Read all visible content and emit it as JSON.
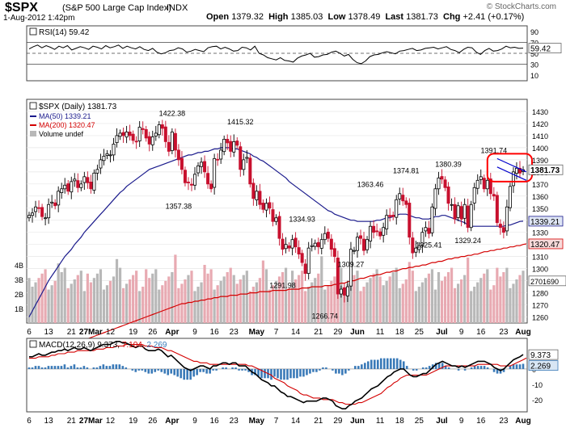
{
  "header": {
    "symbol": "$SPX",
    "name": "(S&P 500 Large Cap Index)",
    "exchange": "INDX",
    "datetime": "1-Aug-2012 1:42pm",
    "open_label": "Open",
    "open": "1379.32",
    "high_label": "High",
    "high": "1385.03",
    "low_label": "Low",
    "low": "1378.49",
    "last_label": "Last",
    "last": "1381.73",
    "chg_label": "Chg",
    "chg": "+2.41 (+0.17%)",
    "credit": "© StockCharts.com"
  },
  "colors": {
    "up_candle": "#000000",
    "down_candle": "#c8102e",
    "ma50": "#1a1a8c",
    "ma200": "#d40000",
    "volume_up": "#b8b8b8",
    "volume_down": "#e8aab2",
    "rsi_fill": "#8a3a3a",
    "macd_line": "#000000",
    "signal_line": "#d40000",
    "histogram": "#3a7ab8",
    "annotation": "#ff0000",
    "trendline": "#0000cc"
  },
  "chart_data": [
    {
      "panel": "rsi",
      "type": "line",
      "legend": "RSI(14) 59.42",
      "last_label": "59.42",
      "ylim": [
        0,
        100
      ],
      "y_ticks": [
        "90",
        "70",
        "50",
        "30",
        "10"
      ],
      "reference_levels": [
        70,
        50,
        30
      ],
      "values": [
        58,
        62,
        65,
        60,
        64,
        61,
        57,
        63,
        60,
        64,
        56,
        59,
        62,
        60,
        57,
        63,
        61,
        58,
        64,
        60,
        62,
        65,
        59,
        63,
        60,
        58,
        62,
        57,
        55,
        59,
        52,
        49,
        51,
        55,
        56,
        60,
        58,
        52,
        54,
        57,
        55,
        53,
        60,
        62,
        63,
        58,
        61,
        58,
        54,
        55,
        61,
        60,
        56,
        63,
        50,
        47,
        42,
        40,
        38,
        42,
        37,
        36,
        34,
        41,
        45,
        47,
        50,
        43,
        44,
        47,
        48,
        52,
        54,
        50,
        45,
        48,
        39,
        33,
        31,
        36,
        44,
        47,
        48,
        51,
        53,
        51,
        49,
        54,
        55,
        57,
        59,
        55,
        56,
        59,
        60,
        61,
        58,
        60,
        62,
        57,
        55,
        51,
        57,
        61,
        60,
        52,
        48,
        55,
        59,
        54,
        55,
        58,
        63,
        60,
        61,
        59,
        59.42
      ]
    },
    {
      "panel": "price",
      "type": "candlestick",
      "legend": [
        "$SPX (Daily) 1381.73",
        "MA(50) 1339.21",
        "MA(200) 1320.47",
        "Volume undef"
      ],
      "ylim": [
        1255,
        1440
      ],
      "y_ticks": [
        1260,
        1270,
        1280,
        1290,
        1300,
        1310,
        1320,
        1330,
        1340,
        1350,
        1360,
        1370,
        1380,
        1390,
        1400,
        1410,
        1420,
        1430
      ],
      "x_tick_labels": [
        "6",
        "13",
        "21",
        "27Mar",
        "12",
        "19",
        "26",
        "Apr",
        "9",
        "16",
        "23",
        "May",
        "7",
        "14",
        "21",
        "29",
        "Jun",
        "11",
        "18",
        "25",
        "Jul",
        "9",
        "16",
        "23",
        "Aug"
      ],
      "annotations": [
        "1422.38",
        "1415.32",
        "1357.38",
        "1334.93",
        "1291.98",
        "1266.74",
        "1363.46",
        "1309.27",
        "1374.81",
        "1380.39",
        "1325.41",
        "1329.24",
        "1391.74"
      ],
      "last_price_labels": [
        "1381.73",
        "1339.21",
        "1320.47"
      ],
      "closes": [
        1344,
        1346,
        1351,
        1350,
        1343,
        1342,
        1353,
        1355,
        1352,
        1364,
        1366,
        1369,
        1364,
        1372,
        1374,
        1367,
        1370,
        1376,
        1371,
        1366,
        1379,
        1382,
        1390,
        1393,
        1395,
        1394,
        1403,
        1410,
        1412,
        1410,
        1413,
        1410,
        1406,
        1405,
        1417,
        1415,
        1408,
        1403,
        1409,
        1412,
        1419,
        1416,
        1405,
        1397,
        1413,
        1398,
        1390,
        1382,
        1371,
        1371,
        1369,
        1378,
        1385,
        1388,
        1380,
        1370,
        1366,
        1391,
        1390,
        1398,
        1407,
        1404,
        1397,
        1405,
        1402,
        1382,
        1390,
        1392,
        1370,
        1358,
        1364,
        1353,
        1349,
        1354,
        1350,
        1339,
        1342,
        1325,
        1316,
        1320,
        1317,
        1324,
        1318,
        1312,
        1305,
        1296,
        1317,
        1319,
        1321,
        1318,
        1324,
        1329,
        1325,
        1316,
        1310,
        1279,
        1283,
        1278,
        1285,
        1316,
        1315,
        1326,
        1325,
        1315,
        1324,
        1335,
        1330,
        1331,
        1327,
        1334,
        1344,
        1343,
        1343,
        1357,
        1362,
        1356,
        1353,
        1326,
        1313,
        1317,
        1319,
        1330,
        1334,
        1329,
        1351,
        1366,
        1375,
        1374,
        1367,
        1354,
        1353,
        1341,
        1352,
        1341,
        1353,
        1334,
        1353,
        1367,
        1373,
        1376,
        1366,
        1373,
        1362,
        1360,
        1338,
        1334,
        1330,
        1351,
        1368,
        1380,
        1383,
        1379,
        1381.73
      ],
      "ma50": [
        1260,
        1265,
        1270,
        1275,
        1280,
        1285,
        1290,
        1294,
        1298,
        1302,
        1306,
        1310,
        1313,
        1316,
        1320,
        1323,
        1326,
        1330,
        1333,
        1336,
        1339,
        1342,
        1345,
        1348,
        1351,
        1354,
        1357,
        1360,
        1363,
        1365,
        1368,
        1370,
        1372,
        1374,
        1376,
        1378,
        1380,
        1382,
        1383,
        1384,
        1385,
        1386,
        1387,
        1388,
        1389,
        1390,
        1391,
        1392,
        1393,
        1394,
        1394,
        1395,
        1396,
        1396,
        1397,
        1397,
        1398,
        1399,
        1399,
        1400,
        1400,
        1400,
        1400,
        1399,
        1399,
        1398,
        1397,
        1396,
        1395,
        1393,
        1392,
        1390,
        1389,
        1387,
        1385,
        1383,
        1381,
        1379,
        1377,
        1375,
        1372,
        1370,
        1368,
        1366,
        1364,
        1362,
        1360,
        1358,
        1356,
        1354,
        1352,
        1350,
        1348,
        1347,
        1345,
        1344,
        1343,
        1342,
        1341,
        1340,
        1340,
        1339,
        1339,
        1339,
        1339,
        1339,
        1339,
        1340,
        1340,
        1341,
        1342,
        1342,
        1343,
        1344,
        1345,
        1345,
        1345,
        1344,
        1343,
        1342,
        1342,
        1341,
        1341,
        1341,
        1342,
        1343,
        1343,
        1344,
        1344,
        1343,
        1342,
        1341,
        1340,
        1339,
        1338,
        1336,
        1335,
        1335,
        1335,
        1335,
        1335,
        1335,
        1335,
        1335,
        1335,
        1335,
        1335,
        1336,
        1336,
        1337,
        1338,
        1339,
        1339.21
      ],
      "ma200": [
        1225,
        1226,
        1227,
        1228,
        1229,
        1230,
        1230,
        1231,
        1232,
        1233,
        1234,
        1235,
        1236,
        1237,
        1238,
        1239,
        1240,
        1241,
        1242,
        1243,
        1244,
        1245,
        1246,
        1247,
        1248,
        1249,
        1250,
        1251,
        1252,
        1253,
        1254,
        1255,
        1256,
        1257,
        1258,
        1259,
        1260,
        1261,
        1262,
        1263,
        1264,
        1265,
        1266,
        1267,
        1268,
        1269,
        1270,
        1271,
        1271,
        1272,
        1272,
        1273,
        1273,
        1274,
        1274,
        1275,
        1275,
        1276,
        1276,
        1277,
        1277,
        1277,
        1278,
        1278,
        1278,
        1279,
        1279,
        1279,
        1280,
        1280,
        1280,
        1281,
        1281,
        1281,
        1281,
        1282,
        1282,
        1282,
        1282,
        1282,
        1283,
        1283,
        1283,
        1283,
        1284,
        1284,
        1284,
        1285,
        1285,
        1285,
        1285,
        1286,
        1286,
        1286,
        1287,
        1287,
        1288,
        1288,
        1289,
        1290,
        1290,
        1291,
        1292,
        1292,
        1293,
        1294,
        1294,
        1295,
        1295,
        1296,
        1297,
        1297,
        1298,
        1298,
        1299,
        1300,
        1300,
        1301,
        1301,
        1302,
        1302,
        1303,
        1303,
        1304,
        1305,
        1305,
        1306,
        1306,
        1307,
        1308,
        1308,
        1309,
        1309,
        1310,
        1310,
        1311,
        1311,
        1312,
        1312,
        1313,
        1314,
        1314,
        1315,
        1315,
        1316,
        1316,
        1317,
        1317,
        1318,
        1318,
        1319,
        1319,
        1320,
        1320.47
      ],
      "volume_axis_labels": [
        "4B",
        "3B",
        "2B",
        "1B"
      ],
      "volume_note": "2701690"
    },
    {
      "panel": "macd",
      "type": "line+histogram",
      "legend_prefix": "MACD(12,26,9)",
      "macd_value": "9.373",
      "signal_value": "7.104",
      "hist_value": "2.269",
      "ylim": [
        -28,
        20
      ],
      "y_ticks": [
        "10",
        "0",
        "-10",
        "-20"
      ],
      "last_labels": [
        "9.373",
        "2.269"
      ],
      "macd": [
        8,
        8,
        9,
        10,
        9,
        9,
        10,
        11,
        11,
        12,
        12,
        13,
        12,
        13,
        14,
        13,
        13,
        14,
        13,
        12,
        13,
        14,
        15,
        16,
        16,
        16,
        17,
        18,
        18,
        17,
        17,
        16,
        15,
        14,
        15,
        15,
        13,
        12,
        12,
        12,
        13,
        12,
        10,
        8,
        9,
        7,
        5,
        3,
        1,
        0,
        -1,
        0,
        1,
        2,
        2,
        1,
        0,
        2,
        2,
        3,
        4,
        4,
        3,
        4,
        4,
        2,
        2,
        2,
        0,
        -2,
        -3,
        -5,
        -7,
        -8,
        -9,
        -11,
        -11,
        -13,
        -15,
        -16,
        -18,
        -18,
        -19,
        -20,
        -21,
        -22,
        -21,
        -21,
        -21,
        -21,
        -20,
        -19,
        -19,
        -20,
        -21,
        -24,
        -25,
        -26,
        -26,
        -24,
        -23,
        -21,
        -20,
        -19,
        -17,
        -15,
        -13,
        -12,
        -11,
        -9,
        -7,
        -5,
        -4,
        -2,
        -1,
        0,
        0,
        -2,
        -4,
        -5,
        -5,
        -4,
        -3,
        -3,
        -1,
        1,
        3,
        4,
        5,
        4,
        3,
        2,
        2,
        1,
        2,
        1,
        2,
        3,
        4,
        5,
        5,
        5,
        4,
        3,
        1,
        0,
        -1,
        0,
        2,
        4,
        6,
        7,
        8,
        9.373
      ],
      "signal": [
        7,
        7,
        7,
        8,
        8,
        8,
        8,
        9,
        9,
        10,
        10,
        10,
        11,
        11,
        11,
        12,
        12,
        12,
        12,
        12,
        12,
        13,
        13,
        13,
        14,
        14,
        14,
        15,
        15,
        15,
        16,
        16,
        16,
        16,
        16,
        16,
        15,
        15,
        15,
        14,
        14,
        14,
        13,
        12,
        12,
        11,
        10,
        9,
        8,
        7,
        6,
        5,
        5,
        4,
        4,
        4,
        3,
        3,
        3,
        3,
        3,
        3,
        3,
        3,
        3,
        3,
        3,
        3,
        2,
        2,
        1,
        0,
        -1,
        -2,
        -3,
        -4,
        -6,
        -7,
        -8,
        -9,
        -11,
        -12,
        -13,
        -14,
        -16,
        -17,
        -17,
        -18,
        -19,
        -19,
        -19,
        -20,
        -20,
        -20,
        -20,
        -21,
        -22,
        -22,
        -23,
        -23,
        -23,
        -23,
        -22,
        -22,
        -21,
        -20,
        -19,
        -18,
        -17,
        -16,
        -14,
        -12,
        -11,
        -9,
        -8,
        -6,
        -5,
        -4,
        -4,
        -4,
        -4,
        -4,
        -4,
        -4,
        -3,
        -2,
        -1,
        0,
        1,
        2,
        2,
        2,
        2,
        2,
        2,
        2,
        2,
        2,
        2,
        3,
        3,
        3,
        3,
        3,
        3,
        3,
        2,
        2,
        2,
        2,
        3,
        4,
        5,
        6,
        7.104
      ]
    }
  ]
}
